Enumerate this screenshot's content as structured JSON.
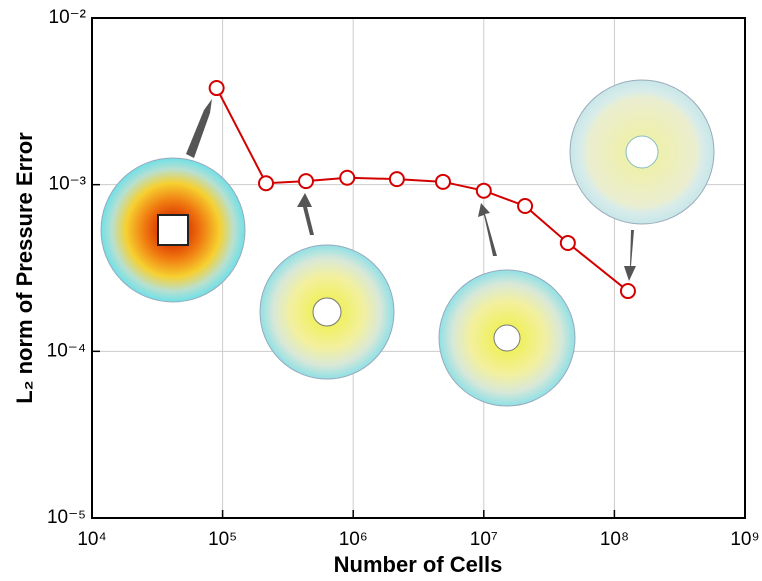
{
  "chart_data": {
    "type": "line",
    "xlabel": "Number of Cells",
    "ylabel": "L₂ norm of Pressure Error",
    "xscale": "log",
    "yscale": "log",
    "grid": true,
    "x": [
      90000,
      215000,
      435000,
      900000,
      2160000,
      4870000,
      10000000,
      20700000,
      44000000,
      127000000
    ],
    "series": [
      {
        "color": "#d40000",
        "values": [
          0.0038,
          0.00102,
          0.00105,
          0.0011,
          0.00108,
          0.00104,
          0.00092,
          0.000745,
          0.000447,
          0.00023
        ]
      }
    ],
    "xlim": [
      10000,
      1000000000
    ],
    "ylim": [
      1e-05,
      0.01
    ],
    "xticks": [
      {
        "value": 10000,
        "label": "10⁴"
      },
      {
        "value": 100000,
        "label": "10⁵"
      },
      {
        "value": 1000000,
        "label": "10⁶"
      },
      {
        "value": 10000000,
        "label": "10⁷"
      },
      {
        "value": 100000000,
        "label": "10⁸"
      },
      {
        "value": 1000000000,
        "label": "10⁹"
      }
    ],
    "yticks": [
      {
        "value": 1e-05,
        "label": "10⁻⁵"
      },
      {
        "value": 0.0001,
        "label": "10⁻⁴"
      },
      {
        "value": 0.001,
        "label": "10⁻³"
      },
      {
        "value": 0.01,
        "label": "10⁻²"
      }
    ]
  }
}
